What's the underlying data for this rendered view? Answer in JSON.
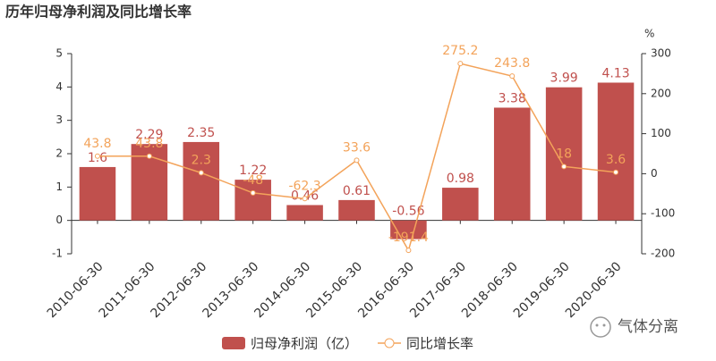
{
  "chart_data": {
    "type": "bar",
    "title": "历年归母净利润及同比增长率",
    "y2_label": "%",
    "categories": [
      "2010-06-30",
      "2011-06-30",
      "2012-06-30",
      "2013-06-30",
      "2014-06-30",
      "2015-06-30",
      "2016-06-30",
      "2017-06-30",
      "2018-06-30",
      "2019-06-30",
      "2020-06-30"
    ],
    "series": [
      {
        "name": "归母净利润（亿）",
        "type": "bar",
        "color": "#c0504d",
        "label_color": "#c0504d",
        "values": [
          1.6,
          2.29,
          2.35,
          1.22,
          0.46,
          0.61,
          -0.56,
          0.98,
          3.38,
          3.99,
          4.13
        ]
      },
      {
        "name": "同比增长率",
        "type": "line",
        "axis": "y2",
        "color": "#f3a35a",
        "label_color": "#f3a35a",
        "values": [
          43.8,
          43.8,
          2.3,
          -48,
          -62.3,
          33.6,
          -191.4,
          275.2,
          243.8,
          18,
          3.6
        ]
      }
    ],
    "ylim": [
      -1,
      5
    ],
    "yticks": [
      -1,
      0,
      1,
      2,
      3,
      4,
      5
    ],
    "y2lim": [
      -200,
      300
    ],
    "y2ticks": [
      -200,
      -100,
      0,
      100,
      200,
      300
    ],
    "grid": false,
    "legend": "bottom",
    "watermark": "气体分离"
  }
}
